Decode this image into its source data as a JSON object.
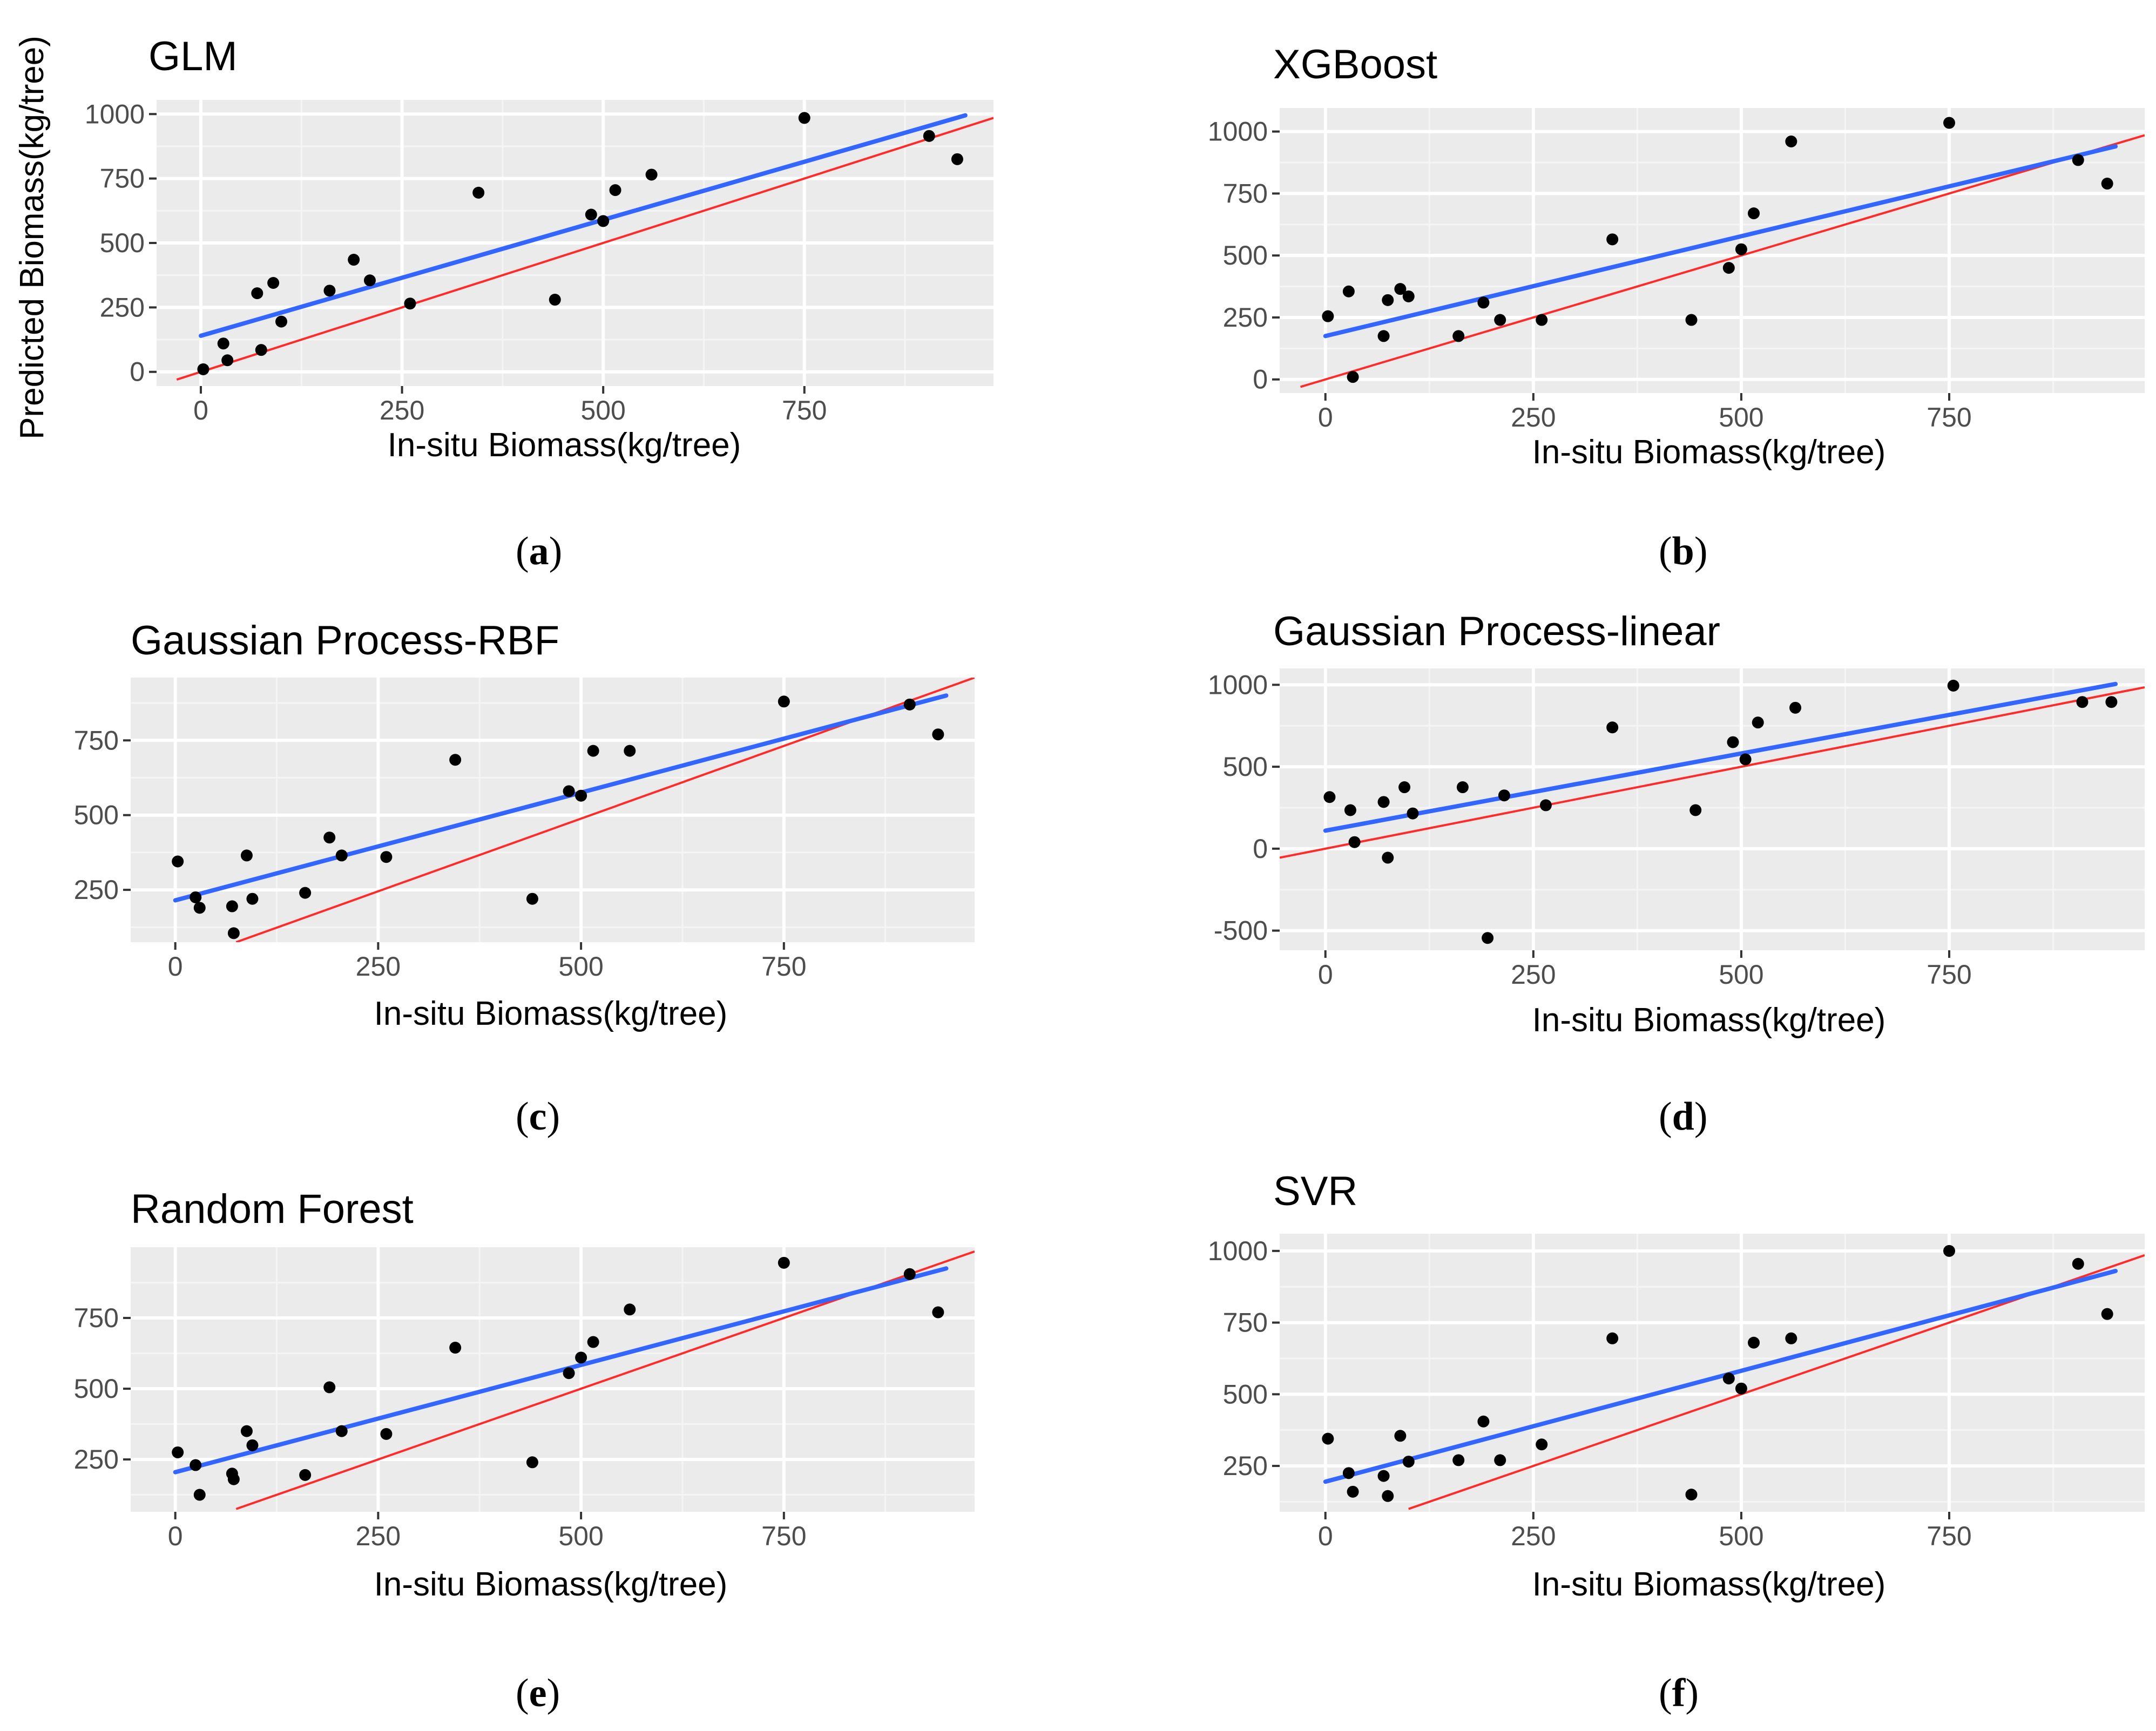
{
  "figure": {
    "ylabel_left": "Predicted Biomass(kg/tree)",
    "colors": {
      "panel_bg": "#ebebeb",
      "grid_major": "#ffffff",
      "grid_minor": "#f5f5f5",
      "tick_text": "#4d4d4d",
      "points": "#000000",
      "fit_line": "#3366ff",
      "identity_line": "#ff2a2a"
    }
  },
  "chart_data": [
    {
      "type": "scatter",
      "title": "GLM",
      "caption": "a",
      "xlabel": "In-situ Biomass(kg/tree)",
      "ylabel": "Predicted Biomass(kg/tree)",
      "xlim": [
        -55,
        985
      ],
      "ylim": [
        -55,
        1055
      ],
      "xticks": [
        0,
        250,
        500,
        750
      ],
      "yticks": [
        0,
        250,
        500,
        750,
        1000
      ],
      "points": [
        [
          3,
          10
        ],
        [
          28,
          110
        ],
        [
          33,
          45
        ],
        [
          70,
          305
        ],
        [
          75,
          85
        ],
        [
          90,
          345
        ],
        [
          100,
          195
        ],
        [
          160,
          315
        ],
        [
          190,
          435
        ],
        [
          210,
          355
        ],
        [
          260,
          265
        ],
        [
          345,
          695
        ],
        [
          440,
          280
        ],
        [
          485,
          610
        ],
        [
          500,
          585
        ],
        [
          515,
          705
        ],
        [
          560,
          765
        ],
        [
          750,
          985
        ],
        [
          905,
          915
        ],
        [
          940,
          825
        ]
      ],
      "fit_line": [
        [
          0,
          140
        ],
        [
          950,
          995
        ]
      ],
      "identity_line": [
        [
          -30,
          -30
        ],
        [
          985,
          985
        ]
      ]
    },
    {
      "type": "scatter",
      "title": "XGBoost",
      "caption": "b",
      "xlabel": "In-situ Biomass(kg/tree)",
      "ylabel": "",
      "xlim": [
        -55,
        985
      ],
      "ylim": [
        -55,
        1095
      ],
      "xticks": [
        0,
        250,
        500,
        750
      ],
      "yticks": [
        0,
        250,
        500,
        750,
        1000
      ],
      "points": [
        [
          3,
          255
        ],
        [
          28,
          355
        ],
        [
          33,
          10
        ],
        [
          70,
          175
        ],
        [
          75,
          320
        ],
        [
          90,
          365
        ],
        [
          100,
          335
        ],
        [
          160,
          175
        ],
        [
          190,
          310
        ],
        [
          210,
          240
        ],
        [
          260,
          240
        ],
        [
          345,
          565
        ],
        [
          440,
          240
        ],
        [
          485,
          450
        ],
        [
          500,
          525
        ],
        [
          515,
          670
        ],
        [
          560,
          960
        ],
        [
          750,
          1035
        ],
        [
          905,
          885
        ],
        [
          940,
          790
        ]
      ],
      "fit_line": [
        [
          0,
          175
        ],
        [
          950,
          940
        ]
      ],
      "identity_line": [
        [
          -30,
          -30
        ],
        [
          985,
          985
        ]
      ]
    },
    {
      "type": "scatter",
      "title": "Gaussian Process-RBF",
      "caption": "c",
      "xlabel": "In-situ Biomass(kg/tree)",
      "ylabel": "",
      "xlim": [
        -55,
        985
      ],
      "ylim": [
        75,
        960
      ],
      "xticks": [
        0,
        250,
        500,
        750
      ],
      "yticks": [
        250,
        500,
        750
      ],
      "points": [
        [
          3,
          345
        ],
        [
          25,
          225
        ],
        [
          30,
          190
        ],
        [
          70,
          195
        ],
        [
          72,
          105
        ],
        [
          88,
          365
        ],
        [
          95,
          220
        ],
        [
          160,
          240
        ],
        [
          190,
          425
        ],
        [
          205,
          365
        ],
        [
          260,
          360
        ],
        [
          345,
          685
        ],
        [
          440,
          220
        ],
        [
          485,
          580
        ],
        [
          500,
          565
        ],
        [
          515,
          715
        ],
        [
          560,
          715
        ],
        [
          750,
          880
        ],
        [
          905,
          870
        ],
        [
          940,
          770
        ]
      ],
      "fit_line": [
        [
          0,
          215
        ],
        [
          950,
          900
        ]
      ],
      "identity_line": [
        [
          75,
          75
        ],
        [
          985,
          960
        ]
      ]
    },
    {
      "type": "scatter",
      "title": "Gaussian Process-linear",
      "caption": "d",
      "xlabel": "In-situ Biomass(kg/tree)",
      "ylabel": "",
      "xlim": [
        -55,
        985
      ],
      "ylim": [
        -620,
        1100
      ],
      "xticks": [
        0,
        250,
        500,
        750
      ],
      "yticks": [
        -500,
        0,
        500,
        1000
      ],
      "points": [
        [
          5,
          315
        ],
        [
          30,
          235
        ],
        [
          35,
          40
        ],
        [
          70,
          285
        ],
        [
          75,
          -55
        ],
        [
          95,
          375
        ],
        [
          105,
          215
        ],
        [
          165,
          375
        ],
        [
          195,
          -545
        ],
        [
          215,
          325
        ],
        [
          265,
          265
        ],
        [
          345,
          740
        ],
        [
          445,
          235
        ],
        [
          490,
          650
        ],
        [
          505,
          545
        ],
        [
          520,
          770
        ],
        [
          565,
          860
        ],
        [
          755,
          995
        ],
        [
          910,
          895
        ],
        [
          945,
          895
        ]
      ],
      "fit_line": [
        [
          0,
          110
        ],
        [
          950,
          1005
        ]
      ],
      "identity_line": [
        [
          -55,
          -55
        ],
        [
          985,
          985
        ]
      ]
    },
    {
      "type": "scatter",
      "title": "Random Forest",
      "caption": "e",
      "xlabel": "In-situ Biomass(kg/tree)",
      "ylabel": "",
      "xlim": [
        -55,
        985
      ],
      "ylim": [
        65,
        1000
      ],
      "xticks": [
        0,
        250,
        500,
        750
      ],
      "yticks": [
        250,
        500,
        750
      ],
      "points": [
        [
          3,
          275
        ],
        [
          25,
          230
        ],
        [
          30,
          125
        ],
        [
          70,
          200
        ],
        [
          72,
          180
        ],
        [
          88,
          350
        ],
        [
          95,
          300
        ],
        [
          160,
          195
        ],
        [
          190,
          505
        ],
        [
          205,
          350
        ],
        [
          260,
          340
        ],
        [
          345,
          645
        ],
        [
          440,
          240
        ],
        [
          485,
          555
        ],
        [
          500,
          610
        ],
        [
          515,
          665
        ],
        [
          560,
          780
        ],
        [
          750,
          945
        ],
        [
          905,
          905
        ],
        [
          940,
          770
        ]
      ],
      "fit_line": [
        [
          0,
          205
        ],
        [
          950,
          925
        ]
      ],
      "identity_line": [
        [
          75,
          75
        ],
        [
          985,
          985
        ]
      ]
    },
    {
      "type": "scatter",
      "title": "SVR",
      "caption": "f",
      "xlabel": "In-situ Biomass(kg/tree)",
      "ylabel": "",
      "xlim": [
        -55,
        985
      ],
      "ylim": [
        90,
        1060
      ],
      "xticks": [
        0,
        250,
        500,
        750
      ],
      "yticks": [
        250,
        500,
        750,
        1000
      ],
      "points": [
        [
          3,
          345
        ],
        [
          28,
          225
        ],
        [
          33,
          160
        ],
        [
          70,
          215
        ],
        [
          75,
          145
        ],
        [
          90,
          355
        ],
        [
          100,
          265
        ],
        [
          160,
          270
        ],
        [
          190,
          405
        ],
        [
          210,
          270
        ],
        [
          260,
          325
        ],
        [
          345,
          695
        ],
        [
          440,
          150
        ],
        [
          485,
          555
        ],
        [
          500,
          520
        ],
        [
          515,
          680
        ],
        [
          560,
          695
        ],
        [
          750,
          1000
        ],
        [
          905,
          955
        ],
        [
          940,
          780
        ]
      ],
      "fit_line": [
        [
          0,
          195
        ],
        [
          950,
          930
        ]
      ],
      "identity_line": [
        [
          100,
          100
        ],
        [
          985,
          985
        ]
      ]
    }
  ]
}
